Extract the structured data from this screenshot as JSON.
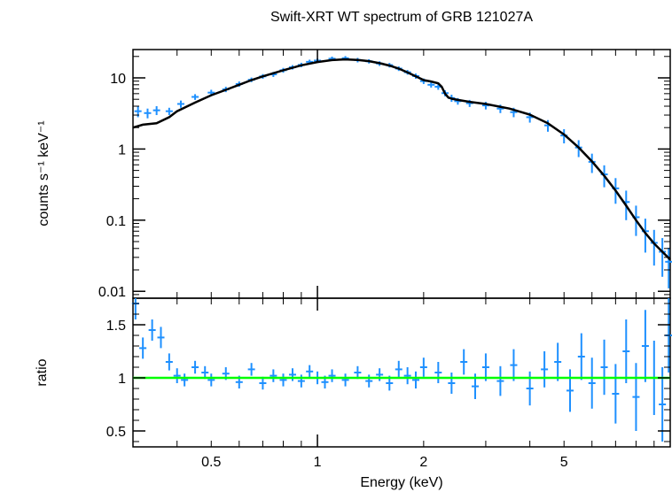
{
  "chart_data": [
    {
      "type": "scatter",
      "panel": "spectrum",
      "title": "Swift-XRT WT spectrum of GRB 121027A",
      "ylabel": "counts s⁻¹ keV⁻¹",
      "x_scale": "log",
      "y_scale": "log",
      "xlim": [
        0.3,
        10.0
      ],
      "ylim": [
        0.008,
        25
      ],
      "yticks": [
        0.01,
        0.1,
        1,
        10
      ],
      "yticklabels": [
        "0.01",
        "0.1",
        "1",
        "10"
      ],
      "colors": {
        "data": "#1e90ff",
        "model": "#000000"
      },
      "series": [
        {
          "role": "data",
          "x": [
            0.31,
            0.33,
            0.35,
            0.38,
            0.41,
            0.45,
            0.5,
            0.55,
            0.6,
            0.65,
            0.7,
            0.75,
            0.8,
            0.85,
            0.9,
            0.95,
            1.0,
            1.1,
            1.2,
            1.3,
            1.4,
            1.5,
            1.6,
            1.7,
            1.8,
            1.9,
            2.0,
            2.1,
            2.2,
            2.3,
            2.4,
            2.5,
            2.7,
            3.0,
            3.3,
            3.6,
            4.0,
            4.5,
            5.0,
            5.5,
            6.0,
            6.5,
            7.0,
            7.5,
            8.0,
            8.5,
            9.0,
            9.5,
            9.9
          ],
          "y": [
            3.4,
            3.2,
            3.5,
            3.4,
            4.3,
            5.4,
            6.2,
            6.9,
            8.2,
            9.4,
            10.5,
            11.2,
            12.8,
            14.1,
            15.2,
            16.8,
            17.5,
            18.6,
            18.9,
            17.8,
            17.1,
            15.9,
            15.1,
            13.5,
            12.0,
            10.6,
            9.0,
            8.0,
            7.5,
            6.1,
            5.2,
            4.7,
            4.4,
            4.1,
            3.7,
            3.3,
            2.8,
            2.15,
            1.55,
            1.05,
            0.66,
            0.44,
            0.28,
            0.18,
            0.11,
            0.07,
            0.048,
            0.036,
            0.026
          ],
          "yerr": [
            0.6,
            0.5,
            0.5,
            0.4,
            0.5,
            0.5,
            0.6,
            0.6,
            0.7,
            0.7,
            0.8,
            0.9,
            1.0,
            1.0,
            1.1,
            1.2,
            1.2,
            1.3,
            1.3,
            1.3,
            1.2,
            1.2,
            1.1,
            1.0,
            0.9,
            0.9,
            0.8,
            0.7,
            0.7,
            0.6,
            0.6,
            0.5,
            0.5,
            0.5,
            0.5,
            0.5,
            0.45,
            0.4,
            0.35,
            0.28,
            0.2,
            0.15,
            0.11,
            0.08,
            0.05,
            0.035,
            0.025,
            0.02,
            0.015
          ]
        },
        {
          "role": "model",
          "x": [
            0.3,
            0.32,
            0.35,
            0.38,
            0.4,
            0.45,
            0.5,
            0.55,
            0.6,
            0.65,
            0.7,
            0.8,
            0.9,
            1.0,
            1.1,
            1.2,
            1.3,
            1.4,
            1.5,
            1.6,
            1.7,
            1.8,
            1.9,
            2.0,
            2.1,
            2.2,
            2.25,
            2.3,
            2.35,
            2.4,
            2.5,
            2.7,
            3.0,
            3.5,
            4.0,
            4.5,
            5.0,
            5.5,
            6.0,
            6.5,
            7.0,
            7.5,
            8.0,
            8.5,
            9.0,
            9.5,
            10.0
          ],
          "y": [
            2.0,
            2.2,
            2.3,
            2.8,
            3.4,
            4.5,
            5.7,
            6.8,
            8.0,
            9.3,
            10.5,
            12.8,
            15.0,
            16.7,
            17.8,
            18.2,
            17.9,
            17.2,
            16.1,
            14.9,
            13.5,
            11.9,
            10.5,
            9.3,
            8.9,
            8.4,
            7.5,
            6.0,
            5.3,
            5.1,
            4.9,
            4.6,
            4.3,
            3.7,
            3.05,
            2.3,
            1.6,
            1.05,
            0.67,
            0.42,
            0.26,
            0.16,
            0.1,
            0.066,
            0.047,
            0.036,
            0.028
          ]
        }
      ]
    },
    {
      "type": "scatter",
      "panel": "residual ratio",
      "xlabel": "Energy (keV)",
      "ylabel": "ratio",
      "x_scale": "log",
      "xlim": [
        0.3,
        10.0
      ],
      "ylim": [
        0.35,
        1.75
      ],
      "xticks": [
        0.5,
        1,
        2,
        5
      ],
      "xticklabels": [
        "0.5",
        "1",
        "2",
        "5"
      ],
      "yticks": [
        0.5,
        1,
        1.5
      ],
      "yticklabels": [
        "0.5",
        "1",
        "1.5"
      ],
      "reference_line": {
        "y": 1,
        "color": "#00ff00"
      },
      "colors": {
        "data": "#1e90ff"
      },
      "series": [
        {
          "role": "data",
          "x": [
            0.305,
            0.32,
            0.34,
            0.36,
            0.38,
            0.4,
            0.42,
            0.45,
            0.48,
            0.5,
            0.55,
            0.6,
            0.65,
            0.7,
            0.75,
            0.8,
            0.85,
            0.9,
            0.95,
            1.0,
            1.05,
            1.1,
            1.2,
            1.3,
            1.4,
            1.5,
            1.6,
            1.7,
            1.8,
            1.9,
            2.0,
            2.2,
            2.4,
            2.6,
            2.8,
            3.0,
            3.3,
            3.6,
            4.0,
            4.4,
            4.8,
            5.2,
            5.6,
            6.0,
            6.5,
            7.0,
            7.5,
            8.0,
            8.5,
            9.0,
            9.5,
            9.9
          ],
          "y": [
            1.7,
            1.28,
            1.45,
            1.38,
            1.15,
            1.02,
            0.98,
            1.1,
            1.05,
            0.98,
            1.04,
            0.96,
            1.08,
            0.95,
            1.02,
            0.98,
            1.03,
            0.97,
            1.06,
            1.0,
            0.96,
            1.02,
            0.98,
            1.05,
            0.97,
            1.03,
            0.95,
            1.08,
            1.02,
            0.98,
            1.1,
            1.05,
            0.95,
            1.15,
            0.92,
            1.1,
            0.97,
            1.12,
            0.9,
            1.08,
            1.15,
            0.88,
            1.2,
            0.95,
            1.1,
            0.85,
            1.25,
            0.82,
            1.3,
            1.0,
            0.75,
            1.4
          ],
          "yerr": [
            0.15,
            0.1,
            0.1,
            0.1,
            0.08,
            0.07,
            0.06,
            0.06,
            0.06,
            0.06,
            0.06,
            0.06,
            0.06,
            0.06,
            0.06,
            0.06,
            0.06,
            0.06,
            0.06,
            0.06,
            0.06,
            0.06,
            0.06,
            0.06,
            0.06,
            0.06,
            0.07,
            0.08,
            0.08,
            0.08,
            0.09,
            0.1,
            0.1,
            0.12,
            0.12,
            0.13,
            0.14,
            0.15,
            0.16,
            0.17,
            0.18,
            0.2,
            0.22,
            0.24,
            0.26,
            0.28,
            0.3,
            0.32,
            0.34,
            0.35,
            0.35,
            0.35
          ]
        }
      ]
    }
  ]
}
